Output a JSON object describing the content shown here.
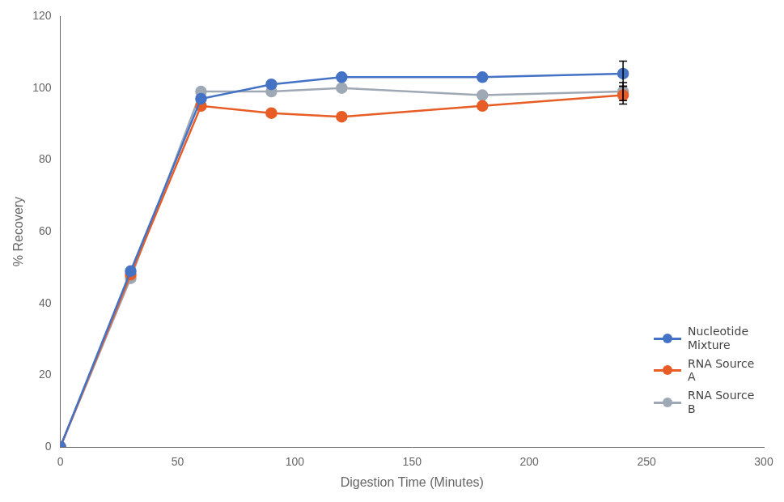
{
  "chart_data": {
    "type": "line",
    "xlabel": "Digestion Time (Minutes)",
    "ylabel": "% Recovery",
    "x": [
      0,
      30,
      60,
      90,
      120,
      180,
      240
    ],
    "series": [
      {
        "name": "Nucleotide\nMixture",
        "color": "#4472C4",
        "marker": "circle",
        "values": [
          0,
          49,
          97,
          101,
          103,
          103,
          104
        ],
        "yerr": [
          null,
          null,
          null,
          null,
          null,
          null,
          3.5
        ]
      },
      {
        "name": "RNA Source\nA",
        "color": "#E85D26",
        "marker": "circle",
        "values": [
          0,
          48,
          95,
          93,
          92,
          95,
          98
        ],
        "yerr": [
          null,
          null,
          null,
          null,
          null,
          null,
          2.5
        ]
      },
      {
        "name": "RNA Source\nB",
        "color": "#9EA9B5",
        "marker": "circle",
        "values": [
          0,
          47,
          99,
          99,
          100,
          98,
          99
        ],
        "yerr": [
          null,
          null,
          null,
          null,
          null,
          null,
          2.5
        ]
      }
    ],
    "xlim": [
      0,
      300
    ],
    "ylim": [
      0,
      120
    ],
    "xticks": [
      0,
      50,
      100,
      150,
      200,
      250,
      300
    ],
    "yticks": [
      0,
      20,
      40,
      60,
      80,
      100,
      120
    ],
    "grid": false,
    "legend": "lower right"
  }
}
